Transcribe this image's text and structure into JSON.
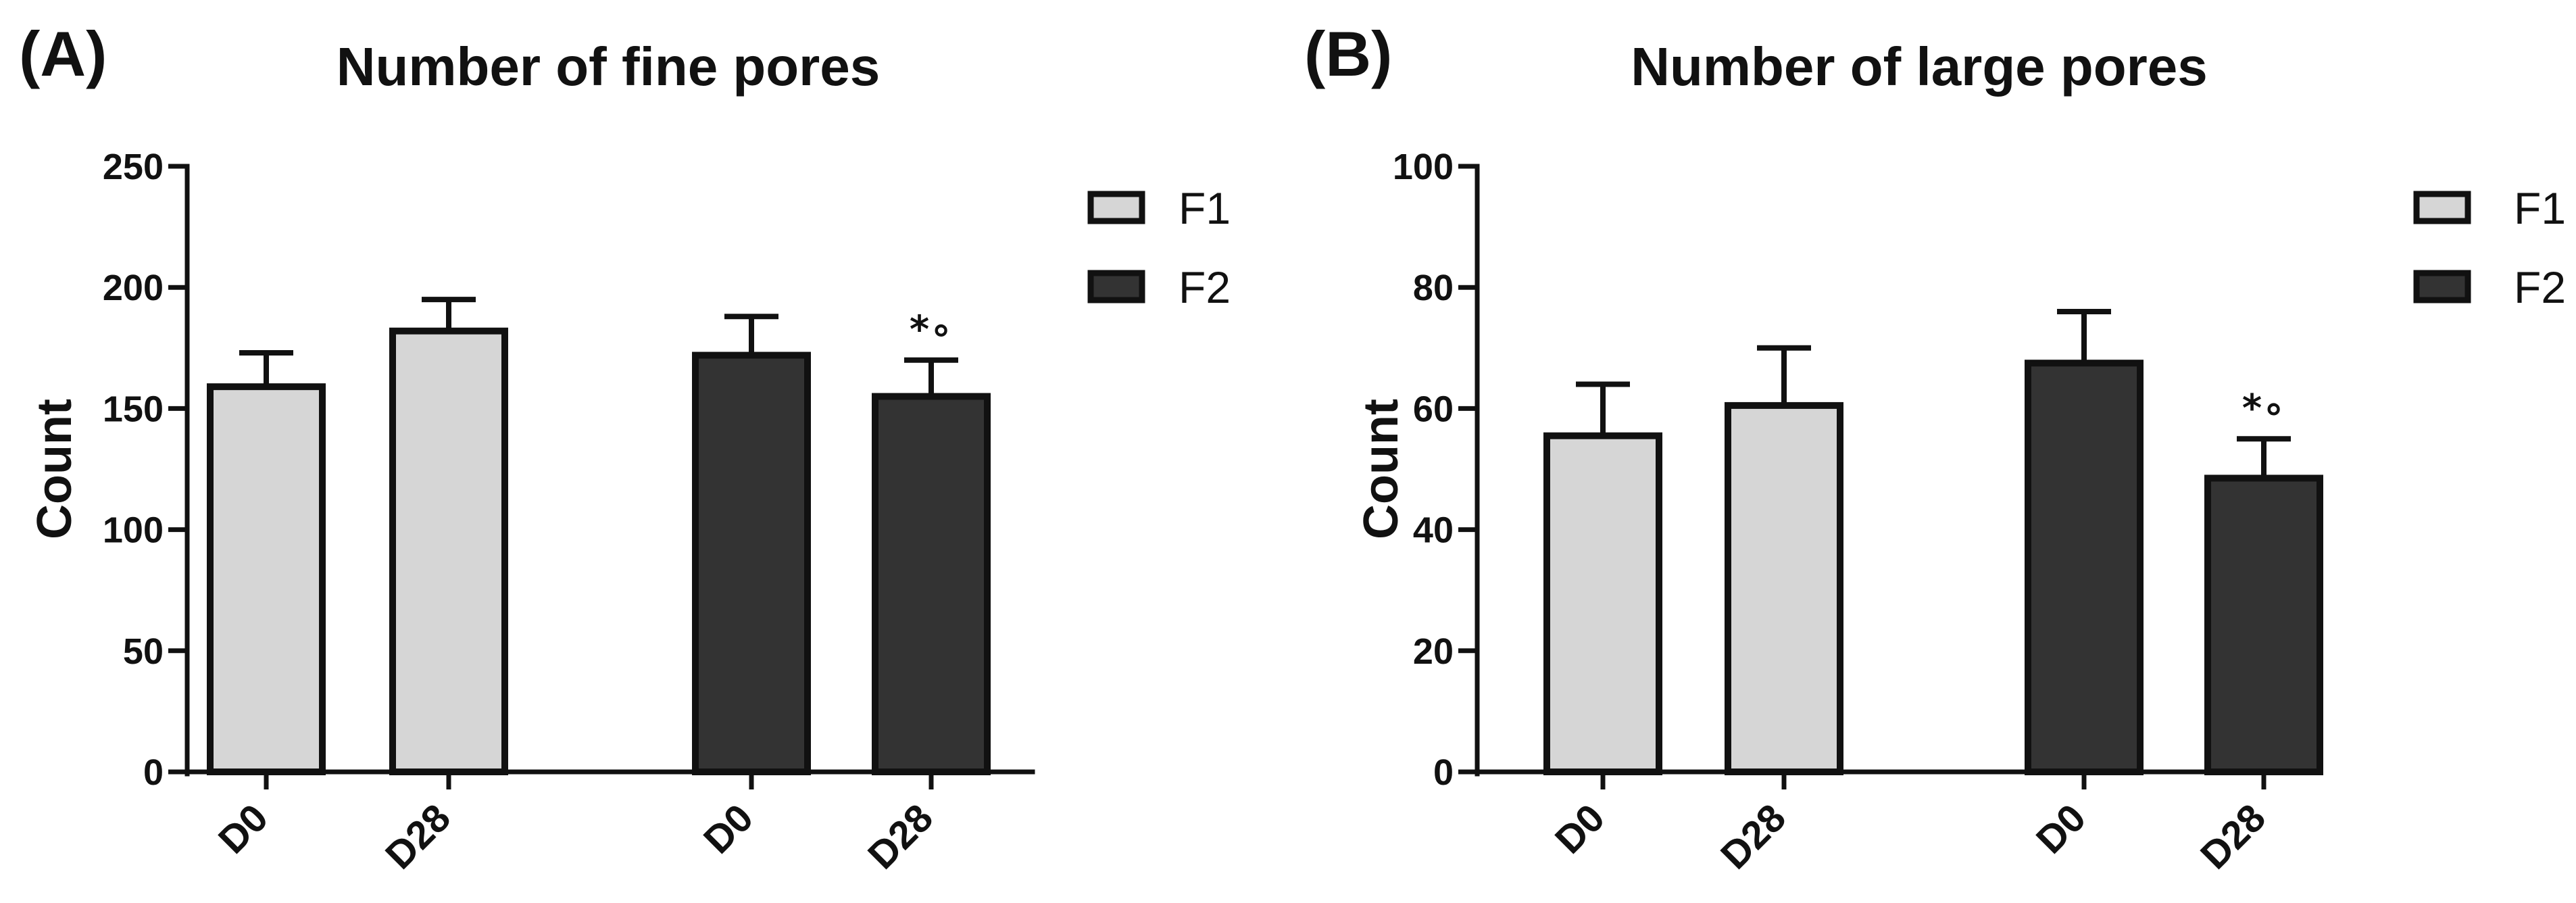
{
  "chart_data": [
    {
      "type": "bar",
      "panel_label": "(A)",
      "title": "Number of fine pores",
      "xlabel": "",
      "ylabel": "Count",
      "ylim": [
        0,
        250
      ],
      "yticks": [
        0,
        50,
        100,
        150,
        200,
        250
      ],
      "legend": {
        "position": "top-right",
        "entries": [
          "F1",
          "F2"
        ]
      },
      "groups": [
        {
          "series": "F1",
          "categories": [
            "D0",
            "D28"
          ],
          "values": [
            159,
            182
          ],
          "errors": [
            14,
            13
          ],
          "annotations": [
            "",
            ""
          ]
        },
        {
          "series": "F2",
          "categories": [
            "D0",
            "D28"
          ],
          "values": [
            172,
            155
          ],
          "errors": [
            16,
            15
          ],
          "annotations": [
            "",
            "*∘"
          ]
        }
      ]
    },
    {
      "type": "bar",
      "panel_label": "(B)",
      "title": "Number of large pores",
      "xlabel": "",
      "ylabel": "Count",
      "ylim": [
        0,
        100
      ],
      "yticks": [
        0,
        20,
        40,
        60,
        80,
        100
      ],
      "legend": {
        "position": "top-right",
        "entries": [
          "F1",
          "F2"
        ]
      },
      "groups": [
        {
          "series": "F1",
          "categories": [
            "D0",
            "D28"
          ],
          "values": [
            55.5,
            60.5
          ],
          "errors": [
            8.5,
            9.5
          ],
          "annotations": [
            "",
            ""
          ]
        },
        {
          "series": "F2",
          "categories": [
            "D0",
            "D28"
          ],
          "values": [
            67.5,
            48.5
          ],
          "errors": [
            8.5,
            6.5
          ],
          "annotations": [
            "",
            "*∘"
          ]
        }
      ]
    }
  ],
  "colors": {
    "F1": "#d6d6d6",
    "F2": "#333333",
    "stroke": "#111111"
  }
}
